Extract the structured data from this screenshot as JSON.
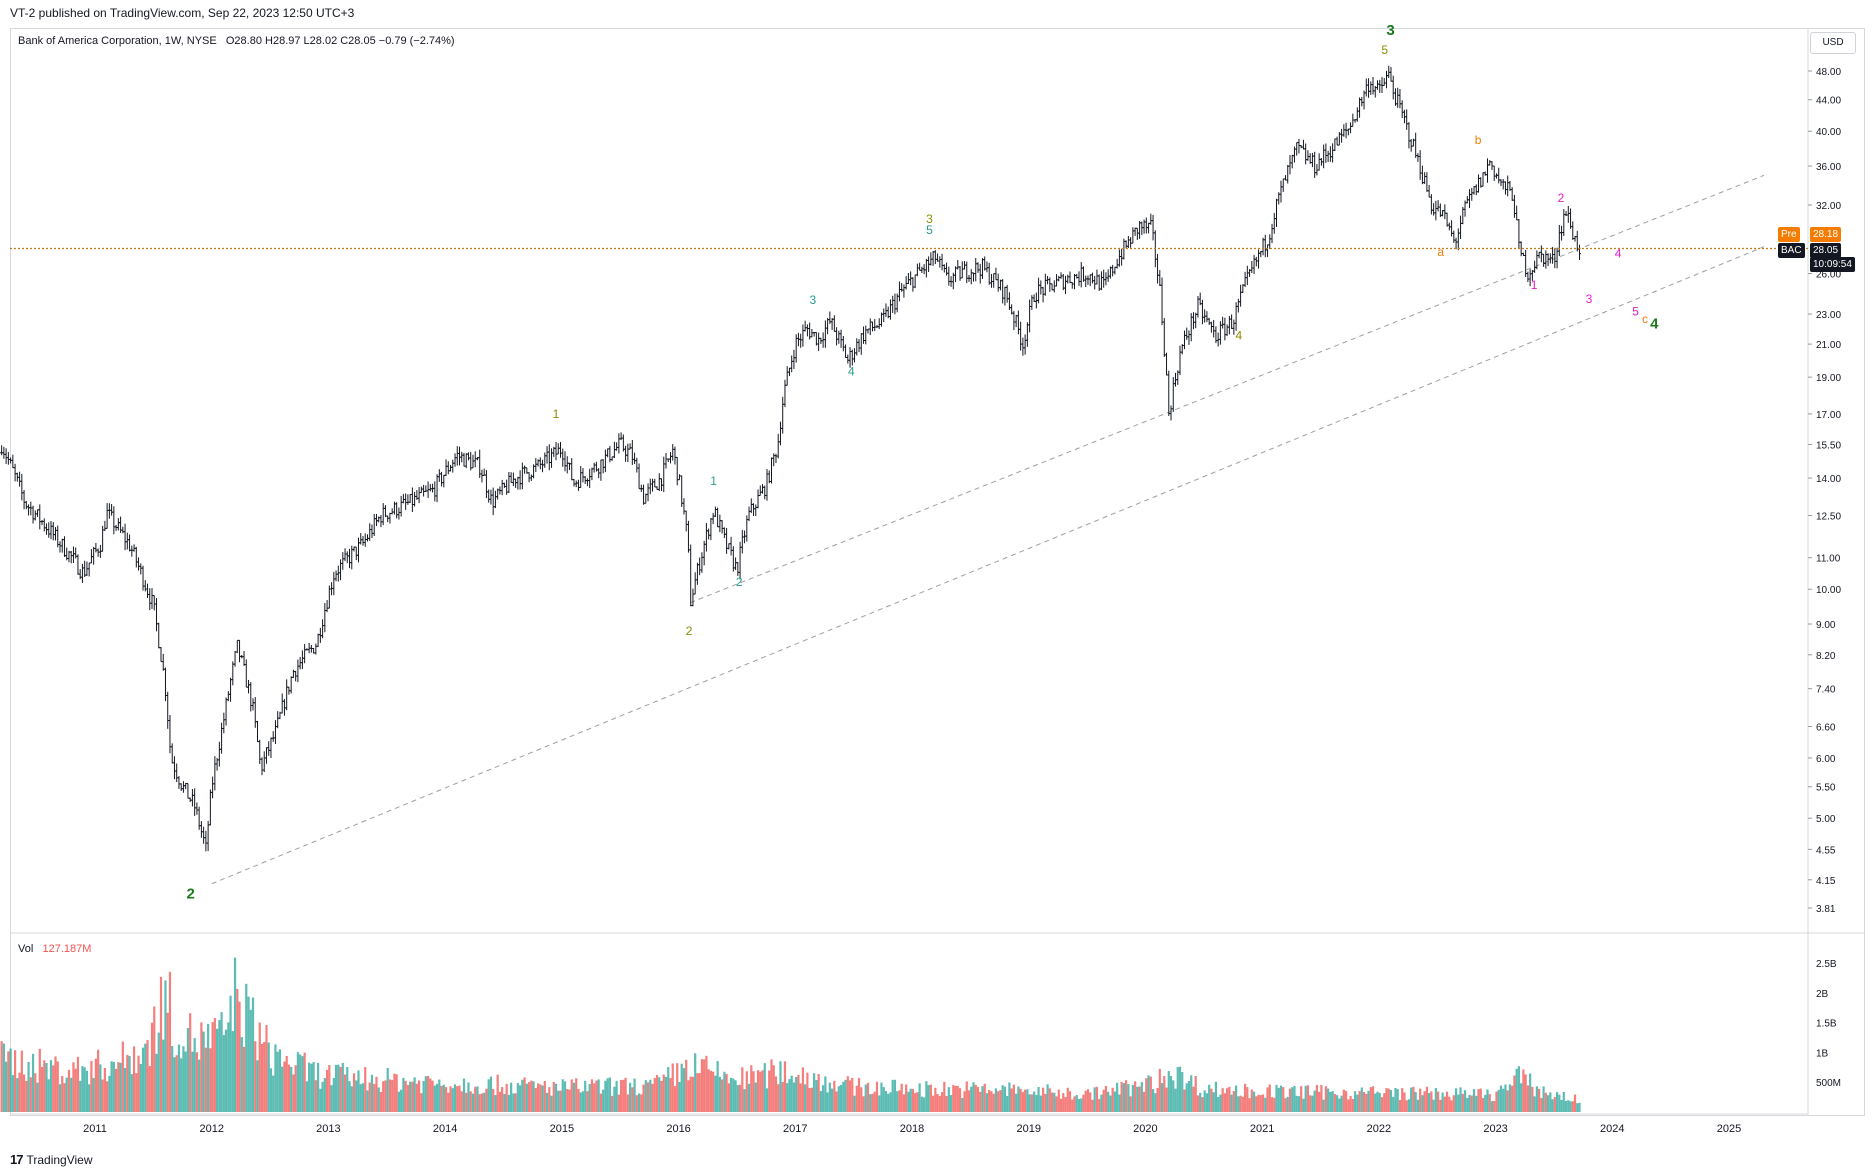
{
  "header": {
    "published": "VT-2 published on TradingView.com, Sep 22, 2023 12:50 UTC+3"
  },
  "legend": {
    "symbol": "Bank of America Corporation, 1W, NYSE",
    "ohlc": "O28.80  H28.97  L28.02  C28.05  −0.79 (−2.74%)",
    "volume_label": "Vol",
    "volume_value": "127.187M"
  },
  "currency": "USD",
  "price_tags": {
    "pre_label": "Pre",
    "pre_value": "28.18",
    "symbol": "BAC",
    "last_value": "28.05",
    "countdown": "10:09:54"
  },
  "footer": {
    "brand": "TradingView",
    "logo": "17"
  },
  "colors": {
    "up": "#26a69a",
    "down": "#ef5350",
    "bar": "#131722",
    "dark_green": "#1b7a1b",
    "olive": "#8b8b00",
    "teal": "#2a9d8f",
    "orange": "#f57c00",
    "magenta": "#e91ec9",
    "price_line": "#c77d1a"
  },
  "chart_data": {
    "type": "ohlc",
    "title": "Bank of America Corporation, 1W, NYSE",
    "y_scale": "log",
    "y_ticks": [
      "48.00",
      "44.00",
      "40.00",
      "36.00",
      "32.00",
      "26.00",
      "23.00",
      "21.00",
      "19.00",
      "17.00",
      "15.50",
      "14.00",
      "12.50",
      "11.00",
      "10.00",
      "9.00",
      "8.20",
      "7.40",
      "6.60",
      "6.00",
      "5.50",
      "5.00",
      "4.55",
      "4.15",
      "3.81"
    ],
    "y_values": [
      48,
      44,
      40,
      36,
      32,
      26,
      23,
      21,
      19,
      17,
      15.5,
      14,
      12.5,
      11,
      10,
      9,
      8.2,
      7.4,
      6.6,
      6,
      5.5,
      5,
      4.55,
      4.15,
      3.81
    ],
    "x_ticks": [
      "2011",
      "2012",
      "2013",
      "2014",
      "2015",
      "2016",
      "2017",
      "2018",
      "2019",
      "2020",
      "2021",
      "2022",
      "2023",
      "2024",
      "2025"
    ],
    "x_tick_years": [
      2011,
      2012,
      2013,
      2014,
      2015,
      2016,
      2017,
      2018,
      2019,
      2020,
      2021,
      2022,
      2023,
      2024,
      2025
    ],
    "price_path": [
      [
        2010.2,
        15.5
      ],
      [
        2010.4,
        13
      ],
      [
        2010.6,
        12
      ],
      [
        2010.9,
        10.5
      ],
      [
        2011.05,
        11.5
      ],
      [
        2011.1,
        12.6
      ],
      [
        2011.3,
        11.4
      ],
      [
        2011.5,
        9.5
      ],
      [
        2011.6,
        7.5
      ],
      [
        2011.65,
        6
      ],
      [
        2011.75,
        5.5
      ],
      [
        2011.85,
        5.2
      ],
      [
        2011.95,
        4.55
      ],
      [
        2012.0,
        5.5
      ],
      [
        2012.1,
        6.7
      ],
      [
        2012.22,
        8.4
      ],
      [
        2012.35,
        7
      ],
      [
        2012.42,
        5.8
      ],
      [
        2012.55,
        6.5
      ],
      [
        2012.7,
        7.8
      ],
      [
        2012.9,
        8.5
      ],
      [
        2013.05,
        10.5
      ],
      [
        2013.3,
        11.5
      ],
      [
        2013.45,
        12.5
      ],
      [
        2013.7,
        13
      ],
      [
        2013.9,
        13.5
      ],
      [
        2014.1,
        15
      ],
      [
        2014.3,
        14.5
      ],
      [
        2014.4,
        13
      ],
      [
        2014.6,
        14
      ],
      [
        2014.8,
        14.5
      ],
      [
        2015.0,
        15.3
      ],
      [
        2015.1,
        13.8
      ],
      [
        2015.3,
        14.5
      ],
      [
        2015.5,
        15.5
      ],
      [
        2015.6,
        15
      ],
      [
        2015.7,
        13.2
      ],
      [
        2015.85,
        14
      ],
      [
        2015.95,
        15.2
      ],
      [
        2016.0,
        14
      ],
      [
        2016.08,
        11.5
      ],
      [
        2016.1,
        9.6
      ],
      [
        2016.3,
        12.7
      ],
      [
        2016.4,
        11.5
      ],
      [
        2016.5,
        10.6
      ],
      [
        2016.6,
        12.5
      ],
      [
        2016.75,
        13.7
      ],
      [
        2016.85,
        15.5
      ],
      [
        2016.9,
        18
      ],
      [
        2017.0,
        21
      ],
      [
        2017.1,
        22
      ],
      [
        2017.2,
        21.3
      ],
      [
        2017.3,
        22.5
      ],
      [
        2017.45,
        20
      ],
      [
        2017.6,
        21.8
      ],
      [
        2017.75,
        22.5
      ],
      [
        2017.9,
        24.5
      ],
      [
        2018.05,
        26
      ],
      [
        2018.2,
        27.3
      ],
      [
        2018.3,
        25.5
      ],
      [
        2018.45,
        26.2
      ],
      [
        2018.6,
        26.5
      ],
      [
        2018.8,
        24.5
      ],
      [
        2018.95,
        21
      ],
      [
        2019.05,
        24.5
      ],
      [
        2019.3,
        25.5
      ],
      [
        2019.5,
        26
      ],
      [
        2019.65,
        25
      ],
      [
        2019.75,
        27
      ],
      [
        2019.85,
        28.5
      ],
      [
        2019.95,
        30
      ],
      [
        2020.05,
        29.8
      ],
      [
        2020.12,
        25
      ],
      [
        2020.2,
        17
      ],
      [
        2020.3,
        20.5
      ],
      [
        2020.45,
        23.5
      ],
      [
        2020.6,
        21.5
      ],
      [
        2020.75,
        22.5
      ],
      [
        2020.85,
        25
      ],
      [
        2020.95,
        27
      ],
      [
        2021.05,
        29
      ],
      [
        2021.15,
        33
      ],
      [
        2021.3,
        38
      ],
      [
        2021.45,
        36
      ],
      [
        2021.6,
        38
      ],
      [
        2021.75,
        40.5
      ],
      [
        2021.85,
        44
      ],
      [
        2021.92,
        46.5
      ],
      [
        2022.0,
        45
      ],
      [
        2022.08,
        47.5
      ],
      [
        2022.15,
        44
      ],
      [
        2022.3,
        38
      ],
      [
        2022.45,
        32
      ],
      [
        2022.55,
        31
      ],
      [
        2022.65,
        28.5
      ],
      [
        2022.75,
        32
      ],
      [
        2022.9,
        35
      ],
      [
        2022.95,
        36.5
      ],
      [
        2023.05,
        34
      ],
      [
        2023.15,
        33
      ],
      [
        2023.2,
        28
      ],
      [
        2023.28,
        26
      ],
      [
        2023.38,
        27.5
      ],
      [
        2023.5,
        27
      ],
      [
        2023.55,
        29.5
      ],
      [
        2023.6,
        31.5
      ],
      [
        2023.68,
        28.8
      ],
      [
        2023.72,
        28.05
      ]
    ],
    "price_line": 28.05,
    "trendlines": [
      {
        "from": [
          2012.0,
          4.1
        ],
        "to": [
          2025.3,
          28.2
        ]
      },
      {
        "from": [
          2016.1,
          9.6
        ],
        "to": [
          2025.3,
          35
        ]
      }
    ],
    "wave_labels": [
      {
        "text": "2",
        "year": 2011.82,
        "price": 3.92,
        "color": "dark_green",
        "bold": true
      },
      {
        "text": "1",
        "year": 2014.95,
        "price": 16.8,
        "color": "olive",
        "bold": false
      },
      {
        "text": "2",
        "year": 2016.09,
        "price": 8.7,
        "color": "olive",
        "bold": false
      },
      {
        "text": "1",
        "year": 2016.3,
        "price": 13.7,
        "color": "teal",
        "bold": false
      },
      {
        "text": "2",
        "year": 2016.52,
        "price": 10.1,
        "color": "teal",
        "bold": false
      },
      {
        "text": "3",
        "year": 2017.15,
        "price": 23.7,
        "color": "teal",
        "bold": false
      },
      {
        "text": "4",
        "year": 2017.48,
        "price": 19.1,
        "color": "teal",
        "bold": false
      },
      {
        "text": "3",
        "year": 2018.15,
        "price": 30.3,
        "color": "olive",
        "bold": false
      },
      {
        "text": "5",
        "year": 2018.15,
        "price": 29.3,
        "color": "teal",
        "bold": false
      },
      {
        "text": "4",
        "year": 2020.8,
        "price": 21.3,
        "color": "olive",
        "bold": false
      },
      {
        "text": "3",
        "year": 2022.1,
        "price": 53.5,
        "color": "dark_green",
        "bold": true
      },
      {
        "text": "5",
        "year": 2022.05,
        "price": 50.5,
        "color": "olive",
        "bold": false
      },
      {
        "text": "b",
        "year": 2022.85,
        "price": 38.5,
        "color": "orange",
        "bold": false
      },
      {
        "text": "a",
        "year": 2022.53,
        "price": 27.4,
        "color": "orange",
        "bold": false
      },
      {
        "text": "2",
        "year": 2023.56,
        "price": 32.3,
        "color": "magenta",
        "bold": false
      },
      {
        "text": "1",
        "year": 2023.33,
        "price": 24.8,
        "color": "magenta",
        "bold": false
      },
      {
        "text": "3",
        "year": 2023.8,
        "price": 23.8,
        "color": "magenta",
        "bold": false
      },
      {
        "text": "4",
        "year": 2024.05,
        "price": 27.3,
        "color": "magenta",
        "bold": false
      },
      {
        "text": "5",
        "year": 2024.2,
        "price": 22.9,
        "color": "magenta",
        "bold": false
      },
      {
        "text": "c",
        "year": 2024.28,
        "price": 22.4,
        "color": "orange",
        "bold": false
      },
      {
        "text": "4",
        "year": 2024.36,
        "price": 22.0,
        "color": "dark_green",
        "bold": true
      }
    ],
    "volume": {
      "y_ticks": [
        "2.5B",
        "2B",
        "1.5B",
        "1B",
        "500M"
      ],
      "y_values": [
        2500,
        2000,
        1500,
        1000,
        500
      ],
      "last": "127.187M",
      "profile": [
        [
          2010.2,
          900
        ],
        [
          2010.8,
          700
        ],
        [
          2011.2,
          850
        ],
        [
          2011.45,
          1100
        ],
        [
          2011.6,
          2000
        ],
        [
          2011.7,
          1400
        ],
        [
          2011.9,
          1200
        ],
        [
          2012.1,
          1300
        ],
        [
          2012.2,
          2000
        ],
        [
          2012.5,
          1000
        ],
        [
          2012.9,
          650
        ],
        [
          2013.5,
          550
        ],
        [
          2014.0,
          500
        ],
        [
          2015.0,
          420
        ],
        [
          2015.8,
          450
        ],
        [
          2016.1,
          800
        ],
        [
          2016.5,
          550
        ],
        [
          2016.9,
          700
        ],
        [
          2017.5,
          430
        ],
        [
          2018.0,
          400
        ],
        [
          2018.9,
          380
        ],
        [
          2019.5,
          300
        ],
        [
          2020.1,
          500
        ],
        [
          2020.2,
          700
        ],
        [
          2020.5,
          400
        ],
        [
          2021.0,
          350
        ],
        [
          2022.0,
          330
        ],
        [
          2023.0,
          300
        ],
        [
          2023.2,
          600
        ],
        [
          2023.4,
          350
        ],
        [
          2023.72,
          200
        ]
      ]
    }
  }
}
